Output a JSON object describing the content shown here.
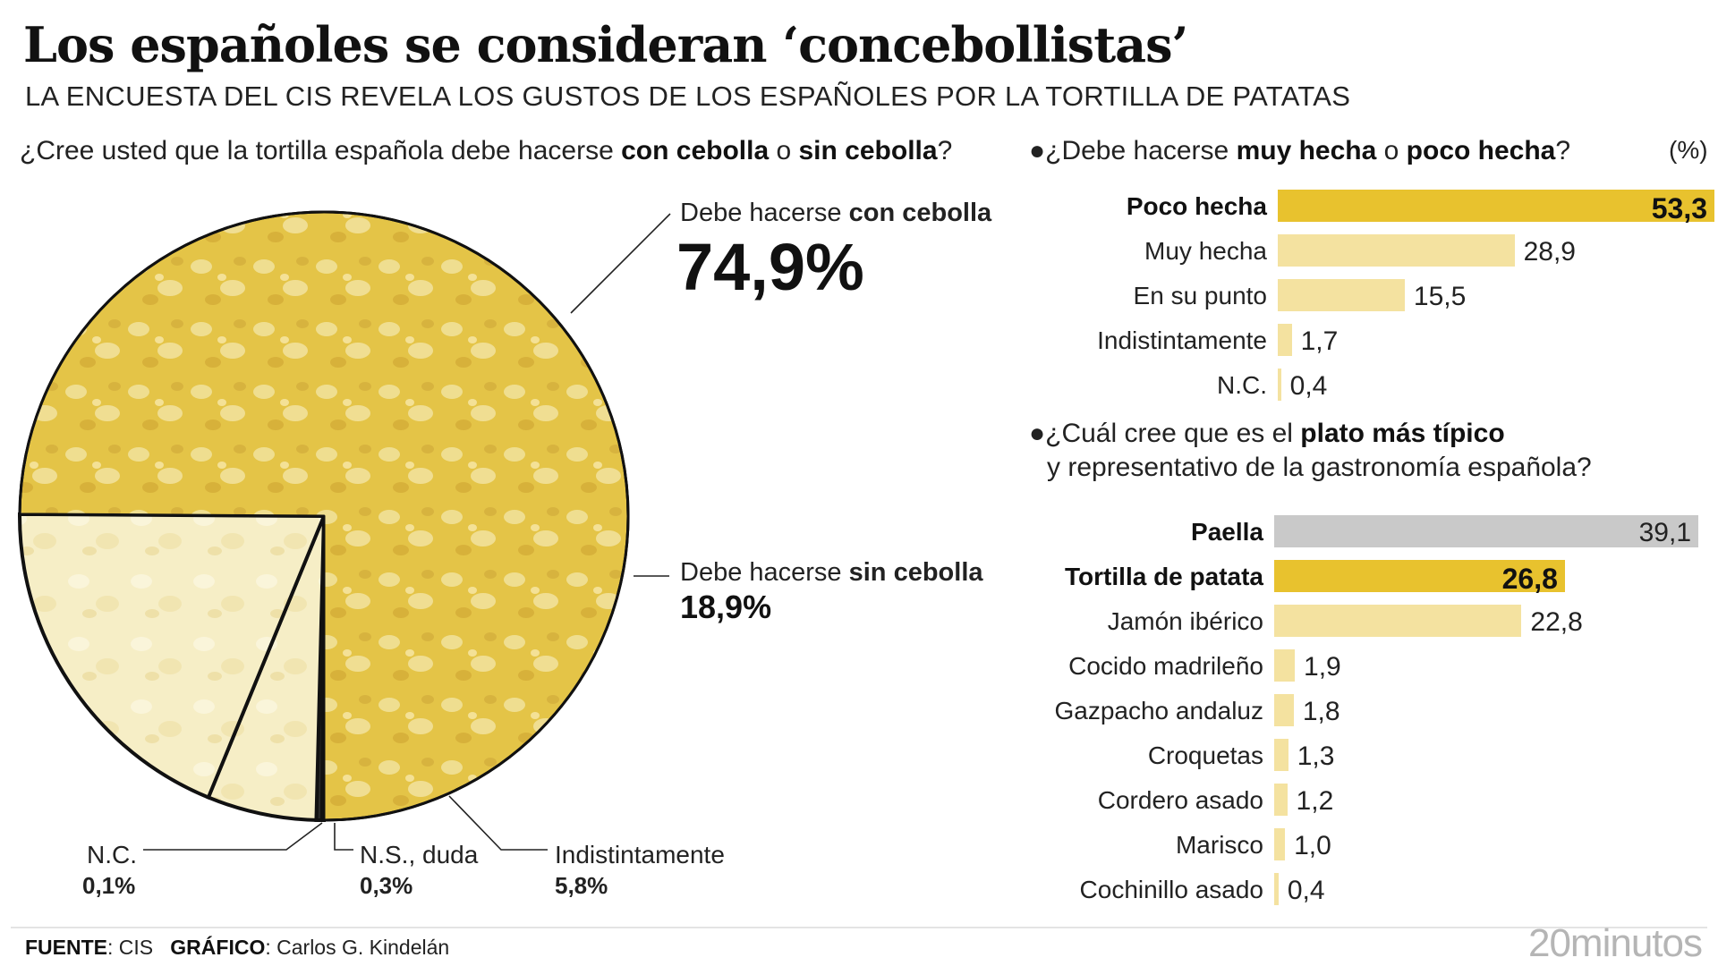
{
  "header": {
    "title": "Los españoles se consideran ‘concebollistas’",
    "subtitle": "LA ENCUESTA DEL CIS REVELA LOS GUSTOS DE LOS ESPAÑOLES POR LA TORTILLA DE PATATAS"
  },
  "pie_question": {
    "pre": "¿Cree usted que la tortilla española debe hacerse ",
    "b1": "con cebolla",
    "mid": " o ",
    "b2": "sin cebolla",
    "post": "?"
  },
  "q1": {
    "bullet": "●",
    "pre": "¿Debe hacerse ",
    "b1": "muy hecha",
    "mid": " o ",
    "b2": "poco hecha",
    "post": "?"
  },
  "unit_label": "(%)",
  "q2": {
    "bullet": "●",
    "pre": "¿Cuál cree que es el ",
    "b1": "plato más típico",
    "line2": "y representativo de la gastronomía española?"
  },
  "pie_labels": {
    "con": {
      "pre": "Debe hacerse ",
      "bold": "con cebolla",
      "value": "74,9%"
    },
    "sin": {
      "pre": "Debe hacerse ",
      "bold": "sin cebolla",
      "value": "18,9%"
    },
    "indist": {
      "name": "Indistintamente",
      "value": "5,8%"
    },
    "ns": {
      "name": "N.S., duda",
      "value": "0,3%"
    },
    "nc": {
      "name": "N.C.",
      "value": "0,1%"
    }
  },
  "footer": {
    "source_label": "FUENTE",
    "source": ": CIS",
    "graphic_label": "GRÁFICO",
    "graphic": ": Carlos G. Kindelán",
    "brand": "20minutos"
  },
  "colors": {
    "highlight": "#e8c22e",
    "light": "#f4e2a0",
    "gray": "#c9c9c9",
    "tortilla": "#e6c74a",
    "tortilla_light": "#f5ebbd"
  },
  "chart_data": [
    {
      "type": "pie",
      "title": "¿Cree usted que la tortilla española debe hacerse con cebolla o sin cebolla?",
      "slices": [
        {
          "label": "Debe hacerse con cebolla",
          "value": 74.9
        },
        {
          "label": "Debe hacerse sin cebolla",
          "value": 18.9
        },
        {
          "label": "Indistintamente",
          "value": 5.8
        },
        {
          "label": "N.S., duda",
          "value": 0.3
        },
        {
          "label": "N.C.",
          "value": 0.1
        }
      ]
    },
    {
      "type": "bar",
      "title": "¿Debe hacerse muy hecha o poco hecha?",
      "unit": "(%)",
      "categories": [
        "Poco hecha",
        "Muy hecha",
        "En su punto",
        "Indistintamente",
        "N.C."
      ],
      "values": [
        53.3,
        28.9,
        15.5,
        1.7,
        0.4
      ],
      "labels": [
        "53,3",
        "28,9",
        "15,5",
        "1,7",
        "0,4"
      ],
      "highlight": "Poco hecha",
      "max": 53.3
    },
    {
      "type": "bar",
      "title": "¿Cuál cree que es el plato más típico y representativo de la gastronomía española?",
      "categories": [
        "Paella",
        "Tortilla de patata",
        "Jamón ibérico",
        "Cocido madrileño",
        "Gazpacho andaluz",
        "Croquetas",
        "Cordero asado",
        "Marisco",
        "Cochinillo asado"
      ],
      "values": [
        39.1,
        26.8,
        22.8,
        1.9,
        1.8,
        1.3,
        1.2,
        1.0,
        0.4
      ],
      "labels": [
        "39,1",
        "26,8",
        "22,8",
        "1,9",
        "1,8",
        "1,3",
        "1,2",
        "1,0",
        "0,4"
      ],
      "highlight": "Tortilla de patata",
      "emphasis": "Paella",
      "max": 39.1
    }
  ]
}
